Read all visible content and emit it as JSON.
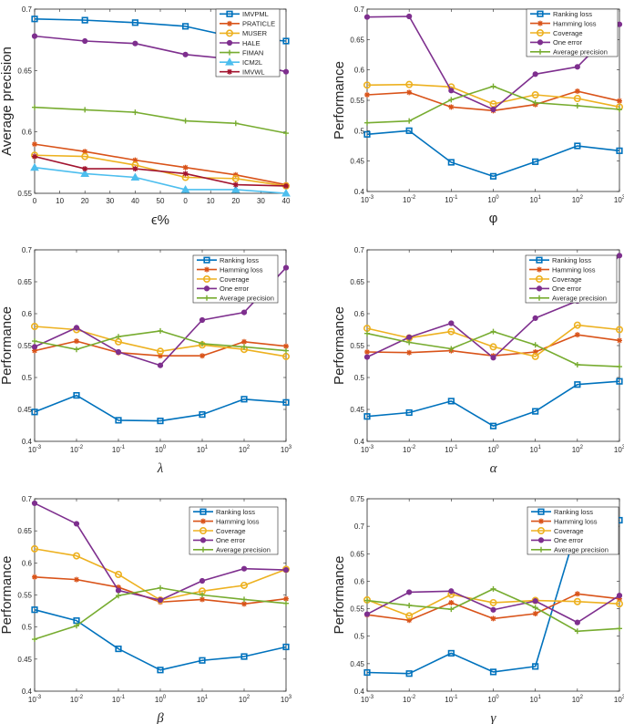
{
  "figure": {
    "title": ""
  },
  "chart_data": [
    {
      "type": "line",
      "id": "eps",
      "title": "",
      "xlabel": "ϵ%",
      "ylabel": "Average precision",
      "xlabel_style": "plain",
      "ylim": [
        0.55,
        0.7
      ],
      "yticks": [
        0.55,
        0.6,
        0.65,
        0.7
      ],
      "ytick_labels": [
        "0.55",
        "0.6",
        "0.65",
        "0.7"
      ],
      "xtick_labels": [
        "0",
        "10",
        "20",
        "30",
        "40",
        "50",
        "0",
        "10",
        "20",
        "30",
        "40"
      ],
      "x_positions": [
        0,
        2,
        4,
        6,
        8,
        10
      ],
      "x_count": 11,
      "legend_position": "top-right",
      "series": [
        {
          "name": "IMVPML",
          "color": "#0072BD",
          "marker": "square",
          "values": [
            0.692,
            0.691,
            0.689,
            0.686,
            0.677,
            0.674
          ]
        },
        {
          "name": "PRATICLE",
          "color": "#D95319",
          "marker": "asterisk",
          "values": [
            0.59,
            0.584,
            0.577,
            0.571,
            0.565,
            0.557
          ]
        },
        {
          "name": "MUSER",
          "color": "#EDB120",
          "marker": "circle",
          "values": [
            0.581,
            0.58,
            0.573,
            0.563,
            0.562,
            0.556
          ]
        },
        {
          "name": "HALE",
          "color": "#7E2F8E",
          "marker": "dot",
          "values": [
            0.678,
            0.674,
            0.672,
            0.663,
            0.659,
            0.649
          ]
        },
        {
          "name": "FIMAN",
          "color": "#77AC30",
          "marker": "plus",
          "values": [
            0.62,
            0.618,
            0.616,
            0.609,
            0.607,
            0.599
          ]
        },
        {
          "name": "ICM2L",
          "color": "#4DBEEE",
          "marker": "triangle",
          "values": [
            0.571,
            0.566,
            0.563,
            0.553,
            0.553,
            0.55
          ]
        },
        {
          "name": "IMVWL",
          "color": "#A2142F",
          "marker": "asterisk",
          "values": [
            0.58,
            0.57,
            0.57,
            0.566,
            0.557,
            0.556
          ]
        }
      ]
    },
    {
      "type": "line",
      "id": "phi",
      "title": "",
      "xlabel": "φ",
      "ylabel": "Performance",
      "xlabel_style": "plain",
      "ylim": [
        0.4,
        0.7
      ],
      "yticks": [
        0.4,
        0.45,
        0.5,
        0.55,
        0.6,
        0.65,
        0.7
      ],
      "ytick_labels": [
        "0.4",
        "0.45",
        "0.5",
        "0.55",
        "0.6",
        "0.65",
        "0.7"
      ],
      "xtick_labels": [
        "-3",
        "-2",
        "-1",
        "0",
        "1",
        "2",
        "3"
      ],
      "x_values": [
        "1e-3",
        "1e-2",
        "1e-1",
        "1e0",
        "1e1",
        "1e2",
        "1e3"
      ],
      "legend_position": "top-right",
      "series": [
        {
          "name": "Ranking loss",
          "color": "#0072BD",
          "marker": "square",
          "values": [
            0.494,
            0.5,
            0.448,
            0.425,
            0.449,
            0.475,
            0.467
          ]
        },
        {
          "name": "Hamming loss",
          "color": "#D95319",
          "marker": "asterisk",
          "values": [
            0.559,
            0.563,
            0.539,
            0.533,
            0.543,
            0.565,
            0.549
          ]
        },
        {
          "name": "Coverage",
          "color": "#EDB120",
          "marker": "circle",
          "values": [
            0.575,
            0.576,
            0.572,
            0.544,
            0.559,
            0.553,
            0.539
          ]
        },
        {
          "name": "One error",
          "color": "#7E2F8E",
          "marker": "dot",
          "values": [
            0.687,
            0.688,
            0.566,
            0.535,
            0.593,
            0.605,
            0.675
          ]
        },
        {
          "name": "Average precision",
          "color": "#77AC30",
          "marker": "plus",
          "values": [
            0.513,
            0.516,
            0.551,
            0.573,
            0.546,
            0.541,
            0.535
          ]
        }
      ]
    },
    {
      "type": "line",
      "id": "lambda",
      "title": "",
      "xlabel": "λ",
      "ylabel": "Performance",
      "xlabel_style": "serif",
      "ylim": [
        0.4,
        0.7
      ],
      "yticks": [
        0.4,
        0.45,
        0.5,
        0.55,
        0.6,
        0.65,
        0.7
      ],
      "ytick_labels": [
        "0.4",
        "0.45",
        "0.5",
        "0.55",
        "0.6",
        "0.65",
        "0.7"
      ],
      "xtick_labels": [
        "-3",
        "-2",
        "-1",
        "0",
        "1",
        "2",
        "3"
      ],
      "x_values": [
        "1e-3",
        "1e-2",
        "1e-1",
        "1e0",
        "1e1",
        "1e2",
        "1e3"
      ],
      "legend_position": "top-right",
      "series": [
        {
          "name": "Ranking loss",
          "color": "#0072BD",
          "marker": "square",
          "values": [
            0.446,
            0.472,
            0.433,
            0.432,
            0.442,
            0.466,
            0.461
          ]
        },
        {
          "name": "Hamming loss",
          "color": "#D95319",
          "marker": "asterisk",
          "values": [
            0.542,
            0.557,
            0.539,
            0.534,
            0.534,
            0.556,
            0.549
          ]
        },
        {
          "name": "Coverage",
          "color": "#EDB120",
          "marker": "circle",
          "values": [
            0.58,
            0.575,
            0.556,
            0.541,
            0.551,
            0.544,
            0.533
          ]
        },
        {
          "name": "One error",
          "color": "#7E2F8E",
          "marker": "dot",
          "values": [
            0.548,
            0.578,
            0.54,
            0.519,
            0.59,
            0.602,
            0.672
          ]
        },
        {
          "name": "Average precision",
          "color": "#77AC30",
          "marker": "plus",
          "values": [
            0.557,
            0.544,
            0.564,
            0.573,
            0.553,
            0.548,
            0.542
          ]
        }
      ]
    },
    {
      "type": "line",
      "id": "alpha",
      "title": "",
      "xlabel": "α",
      "ylabel": "Performance",
      "xlabel_style": "serif",
      "ylim": [
        0.4,
        0.7
      ],
      "yticks": [
        0.4,
        0.45,
        0.5,
        0.55,
        0.6,
        0.65,
        0.7
      ],
      "ytick_labels": [
        "0.4",
        "0.45",
        "0.5",
        "0.55",
        "0.6",
        "0.65",
        "0.7"
      ],
      "xtick_labels": [
        "-3",
        "-2",
        "-1",
        "0",
        "1",
        "2",
        "3"
      ],
      "x_values": [
        "1e-3",
        "1e-2",
        "1e-1",
        "1e0",
        "1e1",
        "1e2",
        "1e3"
      ],
      "legend_position": "top-right",
      "series": [
        {
          "name": "Ranking loss",
          "color": "#0072BD",
          "marker": "square",
          "values": [
            0.439,
            0.445,
            0.463,
            0.424,
            0.447,
            0.489,
            0.494
          ]
        },
        {
          "name": "Hamming loss",
          "color": "#D95319",
          "marker": "asterisk",
          "values": [
            0.54,
            0.539,
            0.542,
            0.534,
            0.54,
            0.567,
            0.558
          ]
        },
        {
          "name": "Coverage",
          "color": "#EDB120",
          "marker": "circle",
          "values": [
            0.577,
            0.562,
            0.572,
            0.548,
            0.533,
            0.582,
            0.575
          ]
        },
        {
          "name": "One error",
          "color": "#7E2F8E",
          "marker": "dot",
          "values": [
            0.532,
            0.563,
            0.585,
            0.531,
            0.593,
            0.62,
            0.691
          ]
        },
        {
          "name": "Average precision",
          "color": "#77AC30",
          "marker": "plus",
          "values": [
            0.569,
            0.555,
            0.545,
            0.572,
            0.551,
            0.52,
            0.517
          ]
        }
      ]
    },
    {
      "type": "line",
      "id": "beta",
      "title": "",
      "xlabel": "β",
      "ylabel": "Performance",
      "xlabel_style": "serif",
      "ylim": [
        0.4,
        0.7
      ],
      "yticks": [
        0.4,
        0.45,
        0.5,
        0.55,
        0.6,
        0.65,
        0.7
      ],
      "ytick_labels": [
        "0.4",
        "0.45",
        "0.5",
        "0.55",
        "0.6",
        "0.65",
        "0.7"
      ],
      "xtick_labels": [
        "-3",
        "-2",
        "-1",
        "0",
        "1",
        "2",
        "3"
      ],
      "x_values": [
        "1e-3",
        "1e-2",
        "1e-1",
        "1e0",
        "1e1",
        "1e2",
        "1e3"
      ],
      "legend_position": "top-right",
      "series": [
        {
          "name": "Ranking loss",
          "color": "#0072BD",
          "marker": "square",
          "values": [
            0.527,
            0.51,
            0.466,
            0.433,
            0.448,
            0.454,
            0.469
          ]
        },
        {
          "name": "Hamming loss",
          "color": "#D95319",
          "marker": "asterisk",
          "values": [
            0.578,
            0.574,
            0.562,
            0.539,
            0.543,
            0.536,
            0.544
          ]
        },
        {
          "name": "Coverage",
          "color": "#EDB120",
          "marker": "circle",
          "values": [
            0.622,
            0.611,
            0.582,
            0.542,
            0.556,
            0.565,
            0.59
          ]
        },
        {
          "name": "One error",
          "color": "#7E2F8E",
          "marker": "dot",
          "values": [
            0.693,
            0.661,
            0.557,
            0.542,
            0.572,
            0.591,
            0.589
          ]
        },
        {
          "name": "Average precision",
          "color": "#77AC30",
          "marker": "plus",
          "values": [
            0.481,
            0.502,
            0.549,
            0.561,
            0.55,
            0.543,
            0.537
          ]
        }
      ]
    },
    {
      "type": "line",
      "id": "gamma",
      "title": "",
      "xlabel": "γ",
      "ylabel": "Performance",
      "xlabel_style": "serif",
      "ylim": [
        0.4,
        0.75
      ],
      "yticks": [
        0.4,
        0.45,
        0.5,
        0.55,
        0.6,
        0.65,
        0.7,
        0.75
      ],
      "ytick_labels": [
        "0.4",
        "0.45",
        "0.5",
        "0.55",
        "0.6",
        "0.65",
        "0.7",
        "0.75"
      ],
      "xtick_labels": [
        "-3",
        "-2",
        "-1",
        "0",
        "1",
        "2",
        "3"
      ],
      "x_values": [
        "1e-3",
        "1e-2",
        "1e-1",
        "1e0",
        "1e1",
        "1e2",
        "1e3"
      ],
      "legend_position": "top-right",
      "series": [
        {
          "name": "Ranking loss",
          "color": "#0072BD",
          "marker": "square",
          "values": [
            0.434,
            0.432,
            0.469,
            0.435,
            0.445,
            0.7,
            0.711
          ]
        },
        {
          "name": "Hamming loss",
          "color": "#D95319",
          "marker": "asterisk",
          "values": [
            0.539,
            0.529,
            0.561,
            0.532,
            0.541,
            0.577,
            0.568
          ]
        },
        {
          "name": "Coverage",
          "color": "#EDB120",
          "marker": "circle",
          "values": [
            0.566,
            0.537,
            0.576,
            0.561,
            0.565,
            0.563,
            0.559
          ]
        },
        {
          "name": "One error",
          "color": "#7E2F8E",
          "marker": "dot",
          "values": [
            0.54,
            0.58,
            0.582,
            0.548,
            0.564,
            0.525,
            0.574
          ]
        },
        {
          "name": "Average precision",
          "color": "#77AC30",
          "marker": "plus",
          "values": [
            0.565,
            0.556,
            0.549,
            0.586,
            0.552,
            0.509,
            0.514
          ]
        }
      ]
    }
  ]
}
